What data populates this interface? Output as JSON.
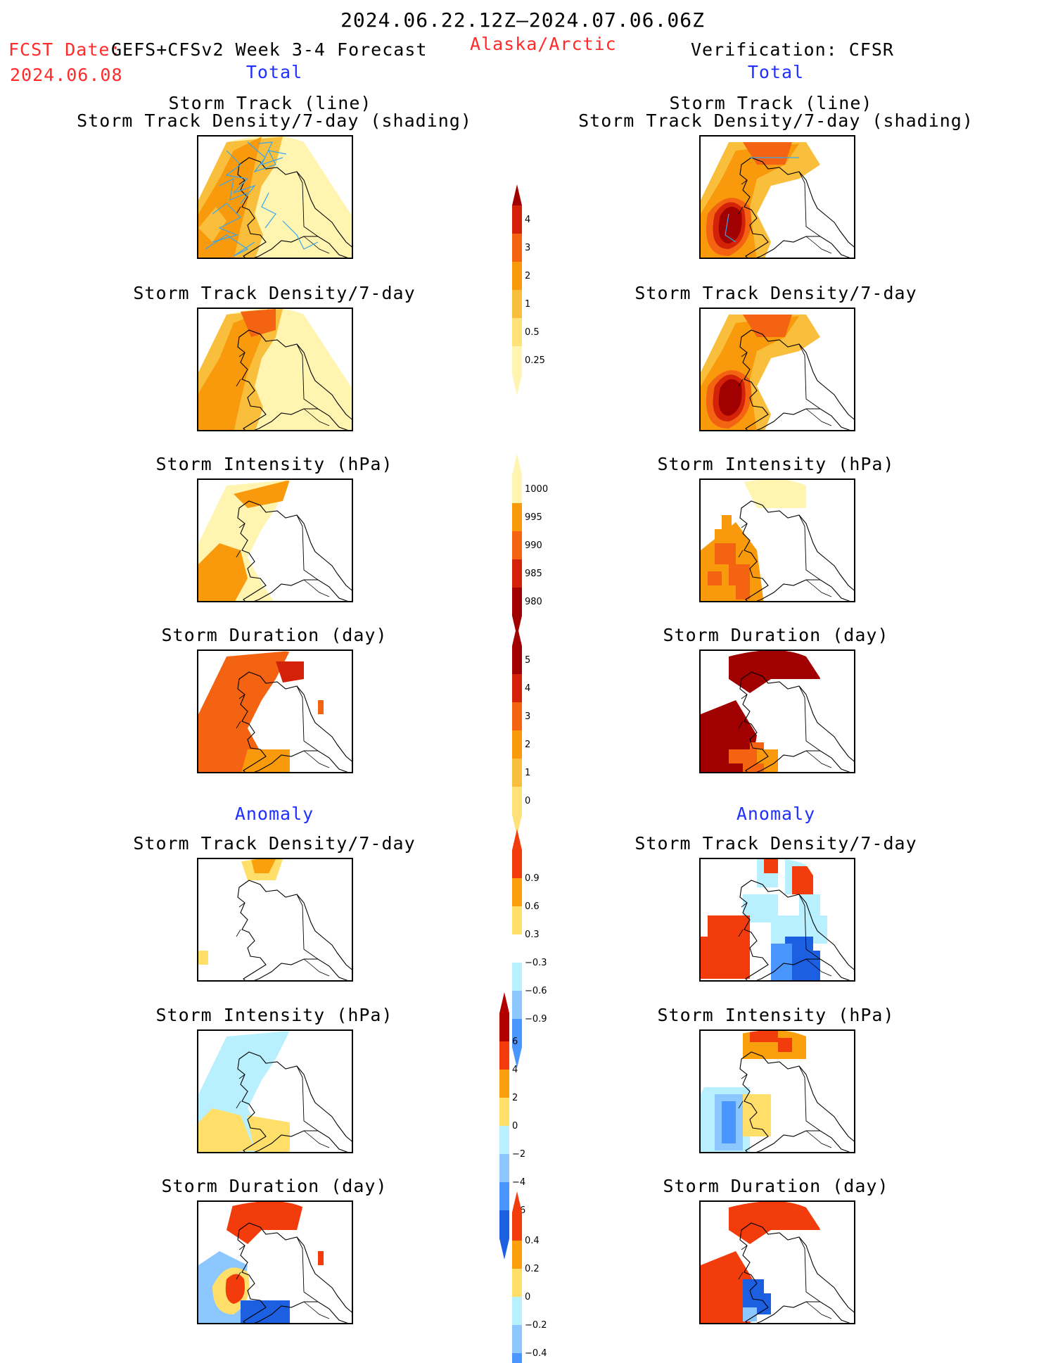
{
  "header": {
    "date_range": "2024.06.22.12Z–2024.07.06.06Z",
    "fcst_date_label": "FCST Date:",
    "fcst_date_value": "2024.06.08",
    "model": "GEFS+CFSv2 Week 3-4 Forecast",
    "region": "Alaska/Arctic",
    "verification": "Verification: CFSR",
    "left_section": "Total",
    "right_section": "Total",
    "anomaly_left": "Anomaly",
    "anomaly_right": "Anomaly"
  },
  "panel_titles": {
    "track_line": "Storm Track (line)",
    "track_shading": "Storm Track Density/7-day (shading)",
    "density": "Storm Track Density/7-day",
    "intensity": "Storm Intensity (hPa)",
    "duration": "Storm Duration (day)"
  },
  "colors": {
    "c025": "#fff5b0",
    "c05": "#ffe17a",
    "c1": "#f9bf3c",
    "c2": "#f99a0c",
    "c3": "#f36312",
    "c4": "#d42208",
    "c5": "#a00000",
    "pos1": "#ffdf6a",
    "pos2": "#f9a00c",
    "pos3": "#f23c0c",
    "pos4": "#b20000",
    "neg1": "#b9f0ff",
    "neg2": "#8cc8ff",
    "neg3": "#4a96ff",
    "neg4": "#1c5fe0",
    "track_line": "#36a6f0"
  },
  "chart_data": [
    {
      "type": "heatmap",
      "name": "Forecast Storm Track Density/7-day + Storm Track",
      "legend": "track_density",
      "levels": [
        "0.25",
        "0.5",
        "1",
        "2",
        "3",
        "4"
      ],
      "ranges": {
        "min_color": "c1",
        "max_color": "c2"
      }
    },
    {
      "type": "heatmap",
      "name": "Verification Storm Track Density/7-day + Storm Track",
      "legend": "track_density",
      "levels": [
        "0.25",
        "0.5",
        "1",
        "2",
        "3",
        "4"
      ],
      "ranges": {
        "max_color": "c5"
      }
    },
    {
      "type": "heatmap",
      "name": "Forecast Storm Intensity (hPa)",
      "legend": "intensity",
      "levels": [
        "1000",
        "995",
        "990",
        "985",
        "980"
      ]
    },
    {
      "type": "heatmap",
      "name": "Forecast Storm Duration (day)",
      "legend": "duration",
      "levels": [
        "5",
        "4",
        "3",
        "2",
        "1",
        "0"
      ]
    },
    {
      "type": "heatmap",
      "name": "Anomaly Storm Track Density/7-day",
      "legend": "density_anom",
      "levels": [
        "0.9",
        "0.6",
        "0.3",
        "−0.3",
        "−0.6",
        "−0.9"
      ]
    },
    {
      "type": "heatmap",
      "name": "Anomaly Storm Intensity (hPa)",
      "legend": "intensity_anom",
      "levels": [
        "6",
        "4",
        "2",
        "0",
        "−2",
        "−4",
        "−6"
      ]
    },
    {
      "type": "heatmap",
      "name": "Anomaly Storm Duration (day)",
      "legend": "duration_anom",
      "levels": [
        "0.4",
        "0.2",
        "0",
        "−0.2",
        "−0.4"
      ]
    }
  ],
  "legends": {
    "track_density": {
      "labels": [
        "4",
        "3",
        "2",
        "1",
        "0.5",
        "0.25"
      ],
      "colors": [
        "c4",
        "c3",
        "c2",
        "c1",
        "c05",
        "c025"
      ],
      "top_color": "c5"
    },
    "intensity": {
      "labels": [
        "1000",
        "995",
        "990",
        "985",
        "980"
      ],
      "colors": [
        "c025",
        "c2",
        "c3",
        "c4",
        "c5"
      ],
      "bottom_color": "c5"
    },
    "duration": {
      "labels": [
        "5",
        "4",
        "3",
        "2",
        "1",
        "0"
      ],
      "colors": [
        "c5",
        "c4",
        "c3",
        "c2",
        "c1",
        "c05"
      ],
      "top_color": "c5"
    },
    "density_anom": {
      "labels": [
        "0.9",
        "0.6",
        "0.3",
        "−0.3",
        "−0.6",
        "−0.9"
      ],
      "colors": [
        "pos3",
        "pos2",
        "pos1",
        "white",
        "neg1",
        "neg2",
        "neg3"
      ]
    },
    "intensity_anom": {
      "labels": [
        "6",
        "4",
        "2",
        "0",
        "−2",
        "−4",
        "−6"
      ],
      "colors": [
        "pos4",
        "pos3",
        "pos2",
        "pos1",
        "neg1",
        "neg2",
        "neg3",
        "neg4"
      ]
    },
    "duration_anom": {
      "labels": [
        "0.4",
        "0.2",
        "0",
        "−0.2",
        "−0.4"
      ],
      "colors": [
        "pos3",
        "pos2",
        "pos1",
        "neg1",
        "neg2",
        "neg3"
      ]
    }
  }
}
